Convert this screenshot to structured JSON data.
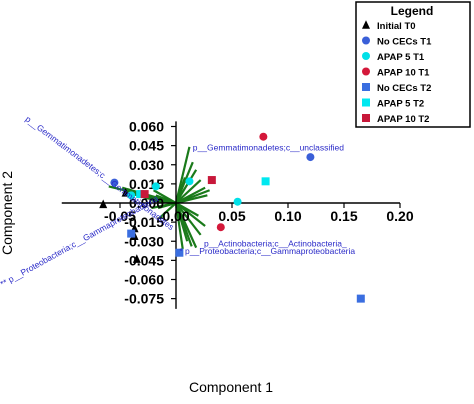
{
  "chart_data": {
    "type": "scatter",
    "xlabel": "Component 1",
    "ylabel": "Component 2",
    "xlim": [
      -0.1,
      0.2
    ],
    "ylim": [
      -0.08,
      0.062
    ],
    "x_ticks": [
      "-0.05",
      "0.00",
      "0.05",
      "0.10",
      "0.15",
      "0.20"
    ],
    "x_tick_values": [
      -0.05,
      0.0,
      0.05,
      0.1,
      0.15,
      0.2
    ],
    "y_ticks": [
      "0.060",
      "0.045",
      "0.030",
      "0.015",
      "0.000",
      "-0.015",
      "-0.030",
      "-0.045",
      "-0.060",
      "-0.075"
    ],
    "y_tick_values": [
      0.06,
      0.045,
      0.03,
      0.015,
      0.0,
      -0.015,
      -0.03,
      -0.045,
      -0.06,
      -0.075
    ],
    "legend": {
      "title": "Legend",
      "position": "top-right",
      "entries": [
        {
          "label": "Initial T0",
          "shape": "triangle",
          "color": "#000000"
        },
        {
          "label": "No CECs T1",
          "shape": "circle",
          "color": "#3a5fd8"
        },
        {
          "label": "APAP 5 T1",
          "shape": "circle",
          "color": "#00e0e8"
        },
        {
          "label": "APAP 10 T1",
          "shape": "circle",
          "color": "#d4183a"
        },
        {
          "label": "No CECs T2",
          "shape": "square",
          "color": "#3a6ee0"
        },
        {
          "label": "APAP 5 T2",
          "shape": "square",
          "color": "#00e8f0"
        },
        {
          "label": "APAP 10 T2",
          "shape": "square",
          "color": "#c8183a"
        }
      ]
    },
    "series": [
      {
        "name": "Initial T0",
        "shape": "triangle",
        "color": "#000000",
        "points": [
          [
            -0.045,
            0.008
          ],
          [
            -0.065,
            -0.001
          ],
          [
            -0.037,
            -0.02
          ],
          [
            -0.037,
            -0.026
          ],
          [
            -0.035,
            -0.044
          ]
        ]
      },
      {
        "name": "No CECs T1",
        "shape": "circle",
        "color": "#3a5fd8",
        "points": [
          [
            -0.055,
            0.016
          ],
          [
            0.12,
            0.036
          ]
        ]
      },
      {
        "name": "APAP 5 T1",
        "shape": "circle",
        "color": "#00e0e8",
        "points": [
          [
            -0.04,
            0.006
          ],
          [
            -0.018,
            0.013
          ],
          [
            0.012,
            0.017
          ],
          [
            0.055,
            0.001
          ]
        ]
      },
      {
        "name": "APAP 10 T1",
        "shape": "circle",
        "color": "#d4183a",
        "points": [
          [
            0.078,
            0.052
          ],
          [
            0.04,
            -0.019
          ]
        ]
      },
      {
        "name": "No CECs T2",
        "shape": "square",
        "color": "#3a6ee0",
        "points": [
          [
            -0.04,
            -0.024
          ],
          [
            0.003,
            -0.039
          ],
          [
            0.165,
            -0.075
          ]
        ]
      },
      {
        "name": "APAP 5 T2",
        "shape": "square",
        "color": "#00e8f0",
        "points": [
          [
            -0.032,
            0.007
          ],
          [
            0.08,
            0.017
          ]
        ]
      },
      {
        "name": "APAP 10 T2",
        "shape": "square",
        "color": "#c8183a",
        "points": [
          [
            -0.028,
            0.007
          ],
          [
            0.032,
            0.018
          ]
        ]
      }
    ],
    "loadings": {
      "origin": [
        0.0,
        0.0
      ],
      "color": "#1a7a1a",
      "vectors": [
        [
          0.012,
          0.044
        ],
        [
          0.018,
          0.026
        ],
        [
          0.026,
          0.012
        ],
        [
          0.022,
          0.018
        ],
        [
          0.015,
          0.032
        ],
        [
          0.008,
          0.02
        ],
        [
          0.028,
          0.006
        ],
        [
          0.03,
          0.01
        ],
        [
          0.01,
          -0.03
        ],
        [
          0.014,
          -0.034
        ],
        [
          0.018,
          -0.035
        ],
        [
          0.022,
          -0.025
        ],
        [
          0.006,
          -0.036
        ],
        [
          0.026,
          -0.018
        ],
        [
          0.02,
          -0.01
        ],
        [
          -0.018,
          0.006
        ],
        [
          -0.02,
          0.01
        ],
        [
          -0.016,
          -0.004
        ],
        [
          -0.022,
          0.002
        ],
        [
          -0.028,
          0.004
        ],
        [
          -0.022,
          -0.004
        ],
        [
          -0.03,
          0.006
        ],
        [
          -0.06,
          0.013
        ],
        [
          -0.048,
          0.012
        ],
        [
          -0.045,
          0.008
        ],
        [
          -0.015,
          -0.012
        ]
      ],
      "labels": [
        {
          "text": "p__Gemmatimonadetes;c__unclassified",
          "at": [
            0.015,
            0.041
          ],
          "angle": 0
        },
        {
          "text": "p__Actinobacteria;c__Actinobacteria_",
          "at": [
            0.025,
            -0.034
          ],
          "angle": 0
        },
        {
          "text": "* p__Proteobacteria;c__Gammaproteobacteria",
          "at": [
            0.003,
            -0.04
          ],
          "angle": 0
        },
        {
          "text": "p__Gemmatimonadetes;c__Gemmatimonadetes",
          "at": [
            -0.135,
            0.065
          ],
          "angle": 37
        },
        {
          "text": "** p__Proteobacteria;c__Gammaproteobacteria",
          "at": [
            -0.155,
            -0.066
          ],
          "angle": -29
        }
      ]
    }
  }
}
